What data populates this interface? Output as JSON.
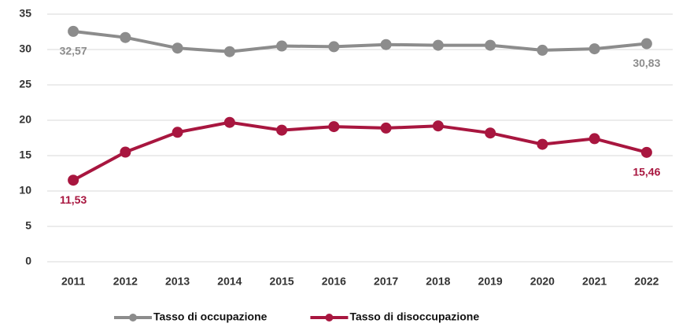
{
  "chart_data": {
    "type": "line",
    "categories": [
      "2011",
      "2012",
      "2013",
      "2014",
      "2015",
      "2016",
      "2017",
      "2018",
      "2019",
      "2020",
      "2021",
      "2022"
    ],
    "series": [
      {
        "name": "Tasso di occupazione",
        "color": "#8c8c8c",
        "values": [
          32.57,
          31.7,
          30.2,
          29.7,
          30.5,
          30.4,
          30.7,
          30.6,
          30.6,
          29.9,
          30.1,
          30.83
        ],
        "value_labels": [
          "32,57",
          null,
          null,
          null,
          null,
          null,
          null,
          null,
          null,
          null,
          null,
          "30,83"
        ]
      },
      {
        "name": "Tasso di disoccupazione",
        "color": "#a8163f",
        "values": [
          11.53,
          15.5,
          18.3,
          19.7,
          18.6,
          19.1,
          18.9,
          19.2,
          18.2,
          16.6,
          17.4,
          15.46
        ],
        "value_labels": [
          "11,53",
          null,
          null,
          null,
          null,
          null,
          null,
          null,
          null,
          null,
          null,
          "15,46"
        ]
      }
    ],
    "ylim": [
      0,
      35
    ],
    "yticks": [
      0,
      5,
      10,
      15,
      20,
      25,
      30,
      35
    ],
    "grid": true,
    "legend": "bottom"
  }
}
